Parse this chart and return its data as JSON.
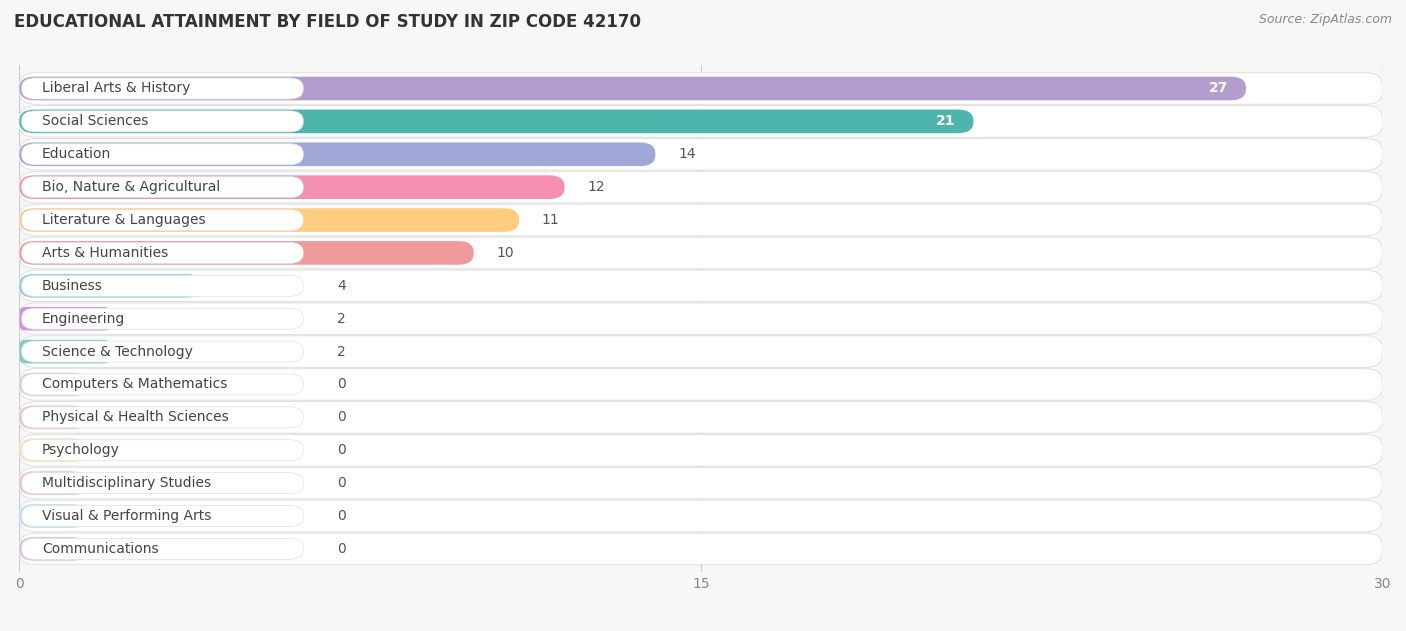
{
  "title": "EDUCATIONAL ATTAINMENT BY FIELD OF STUDY IN ZIP CODE 42170",
  "source": "Source: ZipAtlas.com",
  "categories": [
    "Liberal Arts & History",
    "Social Sciences",
    "Education",
    "Bio, Nature & Agricultural",
    "Literature & Languages",
    "Arts & Humanities",
    "Business",
    "Engineering",
    "Science & Technology",
    "Computers & Mathematics",
    "Physical & Health Sciences",
    "Psychology",
    "Multidisciplinary Studies",
    "Visual & Performing Arts",
    "Communications"
  ],
  "values": [
    27,
    21,
    14,
    12,
    11,
    10,
    4,
    2,
    2,
    0,
    0,
    0,
    0,
    0,
    0
  ],
  "colors": [
    "#b39dce",
    "#4db6ac",
    "#9fa8d8",
    "#f48fb1",
    "#ffcc80",
    "#ef9a9a",
    "#90caf9",
    "#ce93d8",
    "#80cbc4",
    "#b0bec5",
    "#f48fb1",
    "#ffcc80",
    "#ef9a9a",
    "#90caf9",
    "#ce93d8"
  ],
  "xlim": [
    0,
    30
  ],
  "xticks": [
    0,
    15,
    30
  ],
  "background_color": "#f7f7f7",
  "row_bg_color": "#ffffff",
  "row_alt_bg_color": "#f0f0f0",
  "title_fontsize": 12,
  "label_fontsize": 10,
  "value_fontsize": 10,
  "source_fontsize": 9,
  "value_inside_threshold": 18
}
